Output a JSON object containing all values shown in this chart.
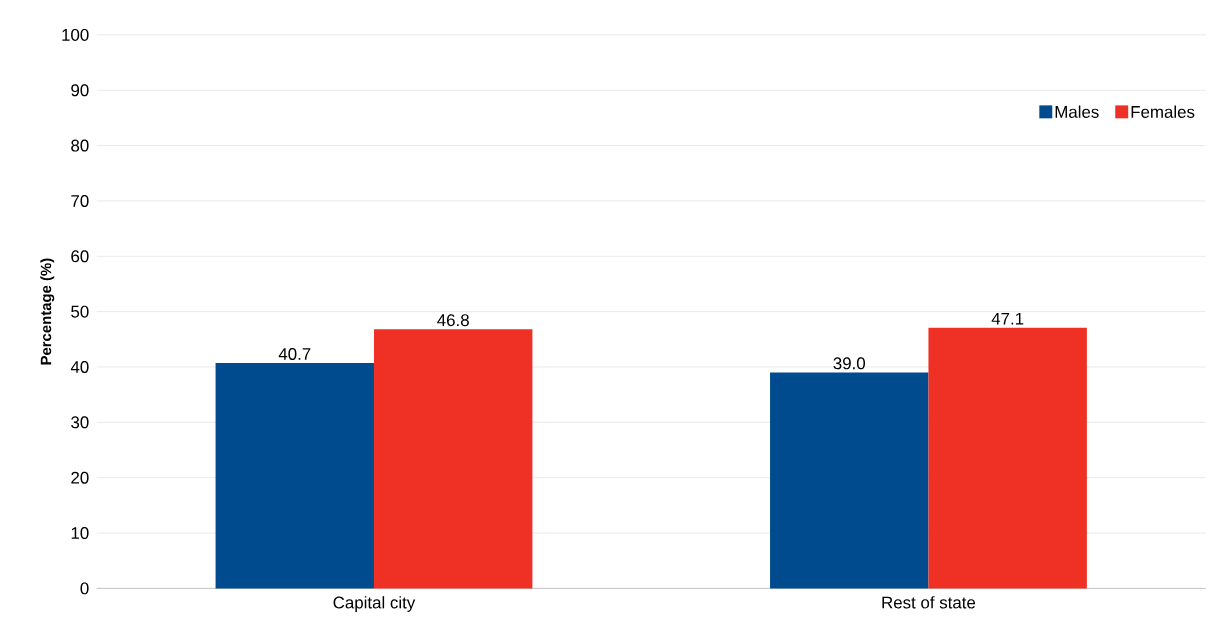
{
  "chart_data": {
    "type": "bar",
    "ylabel": "Percentage (%)",
    "categories": [
      "Capital city",
      "Rest of state"
    ],
    "series": [
      {
        "name": "Males",
        "color": "#004b8d",
        "values": [
          40.7,
          39.0
        ],
        "value_labels": [
          "40.7",
          "39.0"
        ]
      },
      {
        "name": "Females",
        "color": "#ee3124",
        "values": [
          46.8,
          47.1
        ],
        "value_labels": [
          "46.8",
          "47.1"
        ]
      }
    ],
    "ylim": [
      0,
      100
    ],
    "yticks": [
      0,
      10,
      20,
      30,
      40,
      50,
      60,
      70,
      80,
      90,
      100
    ],
    "grid": "y",
    "legend": "top right"
  }
}
